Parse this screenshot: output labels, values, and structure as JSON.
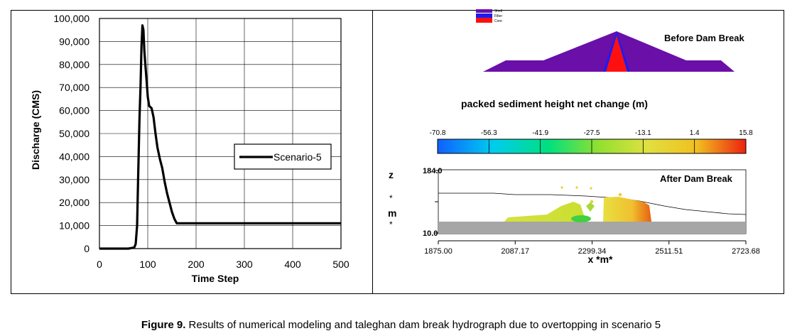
{
  "chart_data": {
    "type": "line",
    "xlabel": "Time Step",
    "ylabel": "Discharge (CMS)",
    "xlim": [
      0,
      500
    ],
    "ylim": [
      0,
      100000
    ],
    "x_ticks": [
      "0",
      "100",
      "200",
      "300",
      "400",
      "500"
    ],
    "y_ticks": [
      "0",
      "10,000",
      "20,000",
      "30,000",
      "40,000",
      "50,000",
      "60,000",
      "70,000",
      "80,000",
      "90,000",
      "100,000"
    ],
    "grid": true,
    "legend": "center-right",
    "series": [
      {
        "name": "Scenario-5",
        "color": "#000000",
        "x": [
          0,
          60,
          72,
          75,
          78,
          80,
          83,
          85,
          87,
          89,
          91,
          93,
          95,
          98,
          100,
          103,
          108,
          112,
          116,
          120,
          125,
          130,
          135,
          140,
          145,
          150,
          155,
          160,
          165,
          500
        ],
        "y": [
          0,
          0,
          500,
          2000,
          10000,
          30000,
          57000,
          70000,
          88000,
          97000,
          95000,
          86000,
          80000,
          72000,
          66000,
          62000,
          61000,
          57000,
          50000,
          44000,
          39000,
          35000,
          29000,
          24000,
          20000,
          16000,
          13000,
          11000,
          11000,
          11000
        ]
      }
    ]
  },
  "dam_panel": {
    "legend_items": [
      {
        "label": "Shell",
        "color": "#6a0fa8"
      },
      {
        "label": "Filter",
        "color": "#1c1cf0"
      },
      {
        "label": "Core",
        "color": "#ff1010"
      }
    ],
    "before_label": "Before Dam Break",
    "colorbar_title": "packed sediment height net change (m)",
    "colorbar_ticks": [
      "-70.8",
      "-56.3",
      "-41.9",
      "-27.5",
      "-13.1",
      "1.4",
      "15.8"
    ],
    "after_label": "After Dam Break",
    "y_axis_letters": [
      "z",
      "*",
      "m",
      "*"
    ],
    "y_top": "184.0",
    "y_bottom": "10.0",
    "x_ticks": [
      "1875.00",
      "2087.17",
      "2299.34",
      "2511.51",
      "2723.68"
    ],
    "x_axis_title": "x *m*"
  },
  "caption": {
    "label": "Figure 9.",
    "text": " Results of numerical modeling and taleghan dam break hydrograph due to overtopping in scenario 5"
  }
}
